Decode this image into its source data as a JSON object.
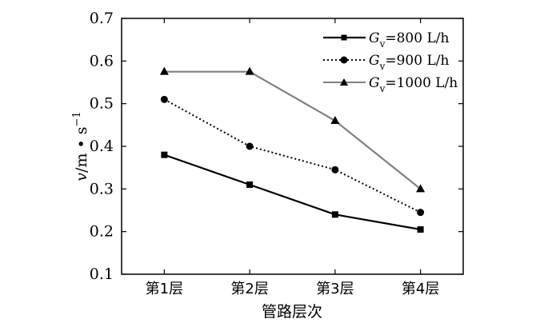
{
  "chart_data": {
    "type": "line",
    "categories": [
      "第1层",
      "第2层",
      "第3层",
      "第4层"
    ],
    "xlabel": "管路层次",
    "ylabel": {
      "var": "v",
      "unit_pre": "/m • s",
      "unit_sup": "−1"
    },
    "ylim": [
      0.1,
      0.7
    ],
    "yticks": [
      "0.1",
      "0.2",
      "0.3",
      "0.4",
      "0.5",
      "0.6",
      "0.7"
    ],
    "grid": false,
    "legend_position": "top-right",
    "series": [
      {
        "name": "Gv=800 L/h",
        "legend": {
          "sym": "G",
          "sub": "v",
          "rest": "=800 L/h"
        },
        "values": [
          0.38,
          0.31,
          0.24,
          0.205
        ],
        "marker": "square",
        "dash": "solid",
        "color": "#000000"
      },
      {
        "name": "Gv=900 L/h",
        "legend": {
          "sym": "G",
          "sub": "v",
          "rest": "=900 L/h"
        },
        "values": [
          0.51,
          0.4,
          0.345,
          0.245
        ],
        "marker": "circle",
        "dash": "dotted",
        "color": "#000000"
      },
      {
        "name": "Gv=1000 L/h",
        "legend": {
          "sym": "G",
          "sub": "v",
          "rest": "=1000 L/h"
        },
        "values": [
          0.575,
          0.575,
          0.46,
          0.3
        ],
        "marker": "triangle",
        "dash": "solid",
        "color": "#808080"
      }
    ]
  }
}
